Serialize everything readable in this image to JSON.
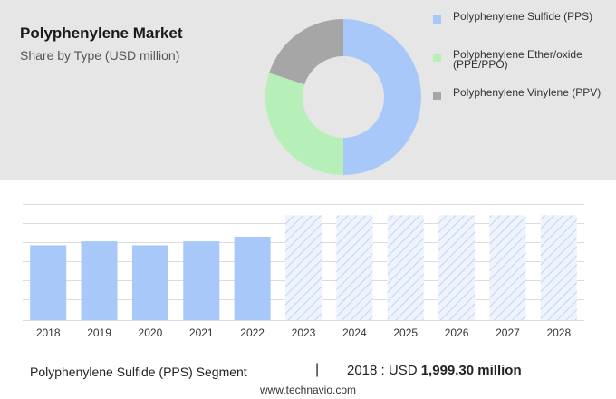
{
  "header": {
    "title": "Polyphenylene Market",
    "subtitle": "Share by Type (USD million)"
  },
  "chart_data": [
    {
      "type": "pie",
      "subtype": "donut",
      "labels": [
        "Polyphenylene Sulfide (PPS)",
        "Polyphenylene Ether/oxide (PPE/PPO)",
        "Polyphenylene Vinylene (PPV)"
      ],
      "values": [
        50,
        30,
        20
      ],
      "colors": [
        "#a8c8fa",
        "#b7efb9",
        "#a6a6a6"
      ],
      "legend_position": "right"
    },
    {
      "type": "bar",
      "categories": [
        "2018",
        "2019",
        "2020",
        "2021",
        "2022",
        "2023",
        "2024",
        "2025",
        "2026",
        "2027",
        "2028"
      ],
      "values": [
        1999.3,
        2105,
        1999.3,
        2105,
        2230,
        null,
        null,
        null,
        null,
        null,
        null
      ],
      "forecast_categories": [
        "2023",
        "2024",
        "2025",
        "2026",
        "2027",
        "2028"
      ],
      "bar_color": "#a8c8fa",
      "forecast_pattern": "diagonal-hatch",
      "grid": true
    }
  ],
  "footer": {
    "segment": "Polyphenylene Sulfide (PPS) Segment",
    "separator": "|",
    "year_label": "2018 : USD",
    "value": "1,999.30 million",
    "website": "www.technavio.com"
  }
}
